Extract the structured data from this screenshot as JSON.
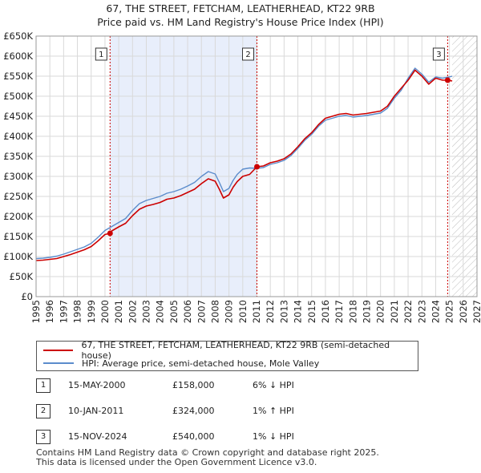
{
  "header": {
    "title": "67, THE STREET, FETCHAM, LEATHERHEAD, KT22 9RB",
    "subtitle": "Price paid vs. HM Land Registry's House Price Index (HPI)"
  },
  "legend": {
    "property_label": "67, THE STREET, FETCHAM, LEATHERHEAD, KT22 9RB (semi-detached house)",
    "hpi_label": "HPI: Average price, semi-detached house, Mole Valley"
  },
  "sales": [
    {
      "num": "1",
      "date": "15-MAY-2000",
      "price": "£158,000",
      "hpi": "6% ↓ HPI"
    },
    {
      "num": "2",
      "date": "10-JAN-2011",
      "price": "£324,000",
      "hpi": "1% ↑ HPI"
    },
    {
      "num": "3",
      "date": "15-NOV-2024",
      "price": "£540,000",
      "hpi": "1% ↓ HPI"
    }
  ],
  "footer": {
    "line1": "Contains HM Land Registry data © Crown copyright and database right 2025.",
    "line2": "This data is licensed under the Open Government Licence v3.0."
  },
  "colors": {
    "property_line": "#cc0000",
    "hpi_line": "#5b8ccc",
    "shade": "#e8eefb",
    "grid": "#d9d9d9",
    "marker_dash": "#cc0000"
  },
  "chart_data": {
    "type": "line",
    "title": "Price paid vs. HM Land Registry's House Price Index (HPI)",
    "xlabel": "",
    "ylabel": "",
    "xlim": [
      1995,
      2027
    ],
    "ylim": [
      0,
      650000
    ],
    "x_ticks": [
      1995,
      1996,
      1997,
      1998,
      1999,
      2000,
      2001,
      2002,
      2003,
      2004,
      2005,
      2006,
      2007,
      2008,
      2009,
      2010,
      2011,
      2012,
      2013,
      2014,
      2015,
      2016,
      2017,
      2018,
      2019,
      2020,
      2021,
      2022,
      2023,
      2024,
      2025,
      2026,
      2027
    ],
    "y_ticks": [
      0,
      50000,
      100000,
      150000,
      200000,
      250000,
      300000,
      350000,
      400000,
      450000,
      500000,
      550000,
      600000,
      650000
    ],
    "y_tick_labels": [
      "£0",
      "£50K",
      "£100K",
      "£150K",
      "£200K",
      "£250K",
      "£300K",
      "£350K",
      "£400K",
      "£450K",
      "£500K",
      "£550K",
      "£600K",
      "£650K"
    ],
    "shaded_between_sales": [
      2000.37,
      2011.03
    ],
    "future_hatch_from": 2025.2,
    "sale_markers": [
      {
        "label": "1",
        "x": 2000.37,
        "y": 158000
      },
      {
        "label": "2",
        "x": 2011.03,
        "y": 324000
      },
      {
        "label": "3",
        "x": 2024.87,
        "y": 540000
      }
    ],
    "series": [
      {
        "name": "HPI: Average price, semi-detached house, Mole Valley",
        "x": [
          1995,
          1995.5,
          1996,
          1996.5,
          1997,
          1997.5,
          1998,
          1998.5,
          1999,
          1999.5,
          2000,
          2000.5,
          2001,
          2001.5,
          2002,
          2002.5,
          2003,
          2003.5,
          2004,
          2004.5,
          2005,
          2005.5,
          2006,
          2006.5,
          2007,
          2007.5,
          2008,
          2008.3,
          2008.6,
          2009,
          2009.3,
          2009.6,
          2010,
          2010.5,
          2011,
          2011.5,
          2012,
          2012.5,
          2013,
          2013.5,
          2014,
          2014.5,
          2015,
          2015.5,
          2016,
          2016.5,
          2017,
          2017.5,
          2018,
          2018.5,
          2019,
          2019.5,
          2020,
          2020.5,
          2021,
          2021.5,
          2022,
          2022.5,
          2023,
          2023.5,
          2024,
          2024.5,
          2025,
          2025.2
        ],
        "values": [
          95000,
          96000,
          98000,
          101000,
          106000,
          112000,
          118000,
          124000,
          133000,
          148000,
          165000,
          175000,
          185000,
          195000,
          215000,
          232000,
          240000,
          245000,
          250000,
          258000,
          262000,
          268000,
          276000,
          285000,
          300000,
          312000,
          306000,
          285000,
          262000,
          270000,
          290000,
          305000,
          318000,
          321000,
          320000,
          322000,
          330000,
          334000,
          340000,
          352000,
          370000,
          390000,
          405000,
          425000,
          440000,
          445000,
          450000,
          452000,
          448000,
          450000,
          452000,
          455000,
          458000,
          470000,
          495000,
          515000,
          545000,
          570000,
          555000,
          535000,
          548000,
          545000,
          548000,
          550000
        ]
      },
      {
        "name": "67, THE STREET, FETCHAM, LEATHERHEAD, KT22 9RB (semi-detached house)",
        "x": [
          1995,
          1995.5,
          1996,
          1996.5,
          1997,
          1997.5,
          1998,
          1998.5,
          1999,
          1999.5,
          2000,
          2000.37,
          2000.5,
          2001,
          2001.5,
          2002,
          2002.5,
          2003,
          2003.5,
          2004,
          2004.5,
          2005,
          2005.5,
          2006,
          2006.5,
          2007,
          2007.5,
          2008,
          2008.3,
          2008.6,
          2009,
          2009.3,
          2009.6,
          2010,
          2010.5,
          2011.03,
          2011.5,
          2012,
          2012.5,
          2013,
          2013.5,
          2014,
          2014.5,
          2015,
          2015.5,
          2016,
          2016.5,
          2017,
          2017.5,
          2018,
          2018.5,
          2019,
          2019.5,
          2020,
          2020.5,
          2021,
          2021.5,
          2022,
          2022.5,
          2023,
          2023.5,
          2024,
          2024.5,
          2024.87,
          2025.2
        ],
        "values": [
          90000,
          91000,
          93000,
          95000,
          100000,
          105000,
          111000,
          117000,
          125000,
          139000,
          155000,
          158000,
          164000,
          174000,
          183000,
          202000,
          218000,
          226000,
          230000,
          235000,
          243000,
          246000,
          252000,
          260000,
          268000,
          282000,
          294000,
          288000,
          268000,
          246000,
          254000,
          273000,
          287000,
          300000,
          305000,
          324000,
          326000,
          334000,
          338000,
          344000,
          356000,
          374000,
          394000,
          409000,
          429000,
          445000,
          450000,
          455000,
          457000,
          453000,
          455000,
          457000,
          460000,
          463000,
          475000,
          500000,
          520000,
          540000,
          565000,
          550000,
          530000,
          545000,
          540000,
          540000,
          538000
        ]
      }
    ]
  }
}
